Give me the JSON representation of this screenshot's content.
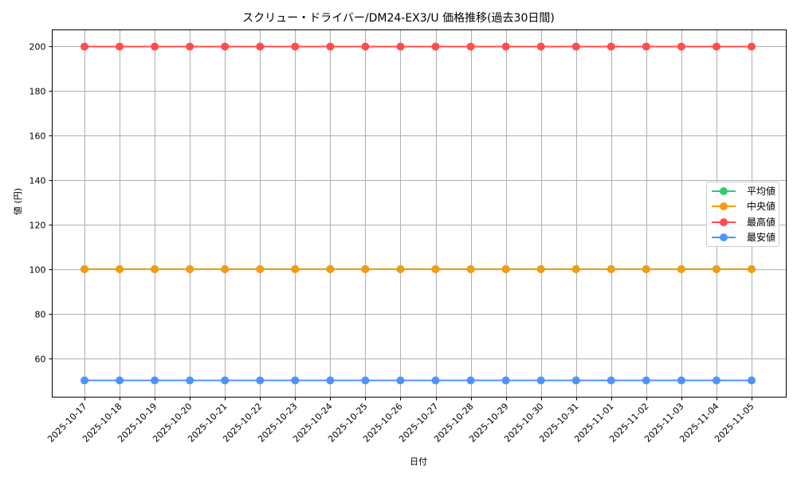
{
  "chart_data": {
    "type": "line",
    "title": "スクリュー・ドライバー/DM24-EX3/U 価格推移(過去30日間)",
    "xlabel": "日付",
    "ylabel": "値 (円)",
    "categories": [
      "2025-10-17",
      "2025-10-18",
      "2025-10-19",
      "2025-10-20",
      "2025-10-21",
      "2025-10-22",
      "2025-10-23",
      "2025-10-24",
      "2025-10-25",
      "2025-10-26",
      "2025-10-27",
      "2025-10-28",
      "2025-10-29",
      "2025-10-30",
      "2025-10-31",
      "2025-11-01",
      "2025-11-02",
      "2025-11-03",
      "2025-11-04",
      "2025-11-05"
    ],
    "series": [
      {
        "name": "平均値",
        "color": "#2ecc71",
        "values": [
          100,
          100,
          100,
          100,
          100,
          100,
          100,
          100,
          100,
          100,
          100,
          100,
          100,
          100,
          100,
          100,
          100,
          100,
          100,
          100
        ]
      },
      {
        "name": "中央値",
        "color": "#f39c12",
        "values": [
          100,
          100,
          100,
          100,
          100,
          100,
          100,
          100,
          100,
          100,
          100,
          100,
          100,
          100,
          100,
          100,
          100,
          100,
          100,
          100
        ]
      },
      {
        "name": "最高値",
        "color": "#ff4d4d",
        "values": [
          200,
          200,
          200,
          200,
          200,
          200,
          200,
          200,
          200,
          200,
          200,
          200,
          200,
          200,
          200,
          200,
          200,
          200,
          200,
          200
        ]
      },
      {
        "name": "最安値",
        "color": "#4d94ff",
        "values": [
          50,
          50,
          50,
          50,
          50,
          50,
          50,
          50,
          50,
          50,
          50,
          50,
          50,
          50,
          50,
          50,
          50,
          50,
          50,
          50
        ]
      }
    ],
    "yticks": [
      60,
      80,
      100,
      120,
      140,
      160,
      180,
      200
    ],
    "ylim": [
      42.5,
      207.5
    ],
    "grid": true,
    "legend_position": "center right"
  }
}
